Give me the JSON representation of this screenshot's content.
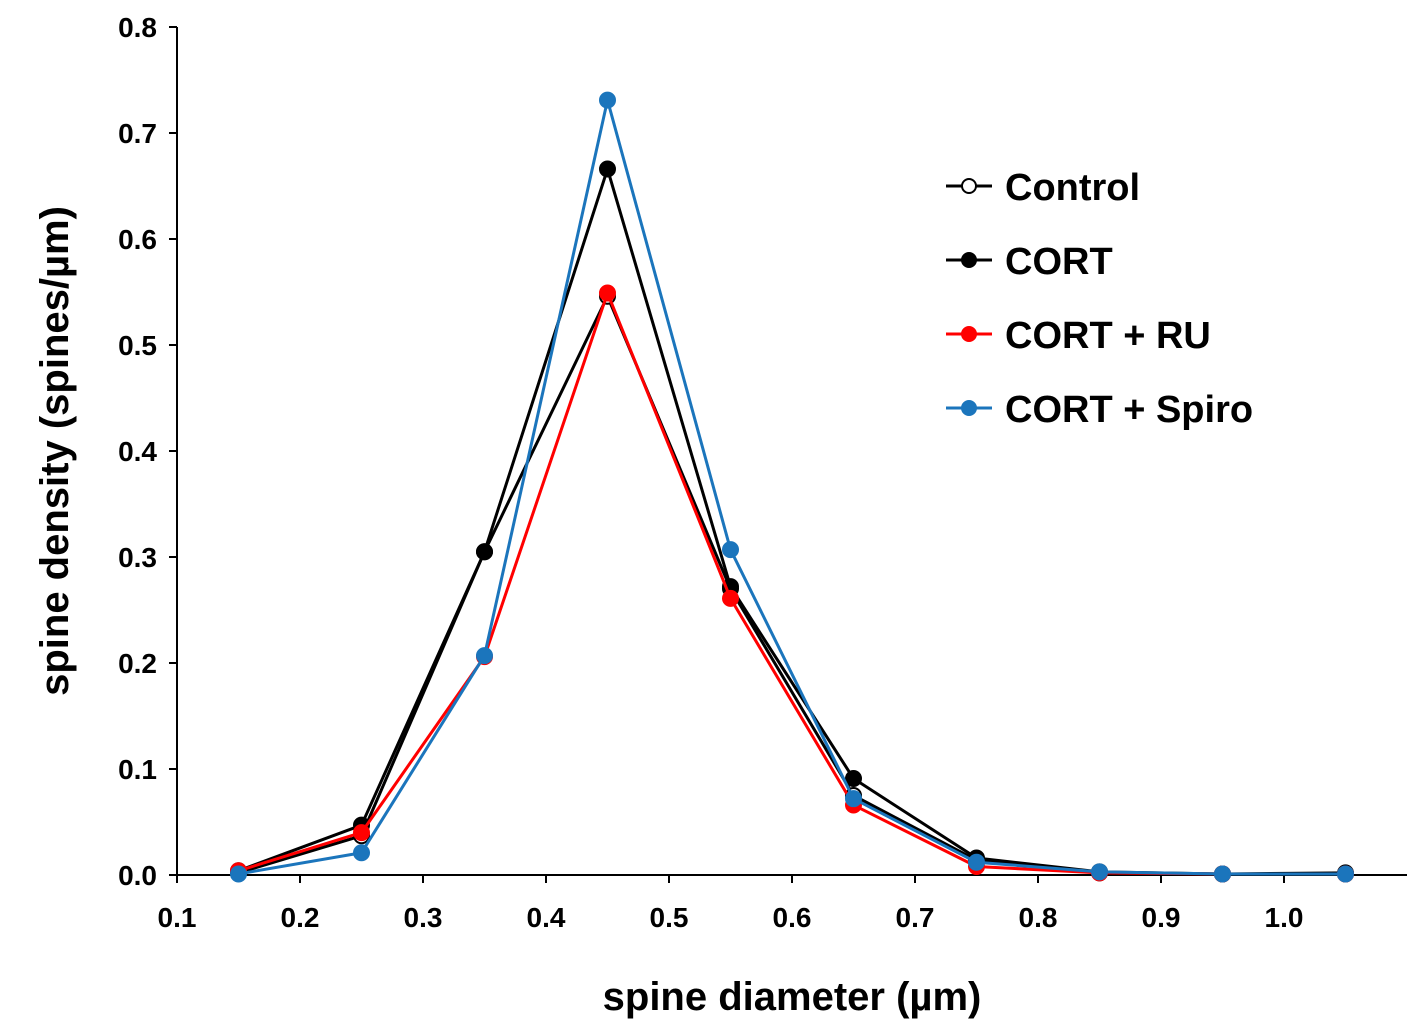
{
  "chart_data": {
    "type": "line",
    "xlabel": "spine diameter (µm)",
    "ylabel": "spine density (spines/µm)",
    "xlim": [
      0.1,
      1.1
    ],
    "ylim": [
      0.0,
      0.8
    ],
    "xticks": [
      "0.1",
      "0.2",
      "0.3",
      "0.4",
      "0.5",
      "0.6",
      "0.7",
      "0.8",
      "0.9",
      "1.0"
    ],
    "yticks": [
      "0.0",
      "0.1",
      "0.2",
      "0.3",
      "0.4",
      "0.5",
      "0.6",
      "0.7",
      "0.8"
    ],
    "x": [
      0.15,
      0.25,
      0.35,
      0.45,
      0.55,
      0.65,
      0.75,
      0.85,
      0.95,
      1.05
    ],
    "legend_position": "right",
    "grid": false,
    "series": [
      {
        "name": "Control",
        "color": "#000000",
        "marker_fill": "#ffffff",
        "values": [
          0.002,
          0.037,
          0.305,
          0.546,
          0.27,
          0.075,
          0.014,
          0.002,
          0.001,
          0.001
        ]
      },
      {
        "name": "CORT",
        "color": "#000000",
        "marker_fill": "#000000",
        "values": [
          0.004,
          0.047,
          0.305,
          0.666,
          0.272,
          0.091,
          0.016,
          0.003,
          0.001,
          0.002
        ]
      },
      {
        "name": "CORT + RU",
        "color": "#ff0000",
        "marker_fill": "#ff0000",
        "values": [
          0.004,
          0.04,
          0.206,
          0.549,
          0.261,
          0.066,
          0.008,
          0.002,
          0.001,
          0.001
        ]
      },
      {
        "name": "CORT + Spiro",
        "color": "#1b75bc",
        "marker_fill": "#1b75bc",
        "values": [
          0.001,
          0.021,
          0.207,
          0.731,
          0.307,
          0.072,
          0.012,
          0.003,
          0.001,
          0.001
        ]
      }
    ]
  }
}
